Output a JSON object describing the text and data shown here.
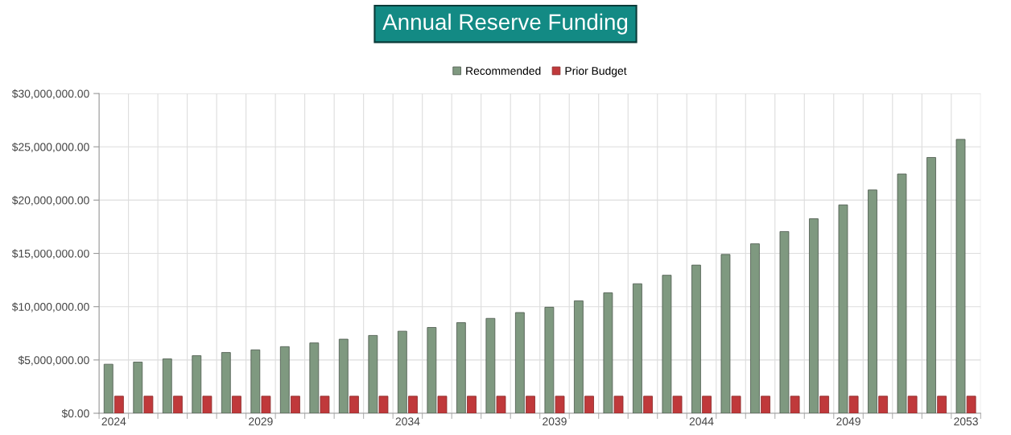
{
  "chart_data": {
    "type": "bar",
    "title": "Annual Reserve Funding",
    "categories": [
      "2024",
      null,
      null,
      null,
      null,
      "2029",
      null,
      null,
      null,
      null,
      "2034",
      null,
      null,
      null,
      null,
      "2039",
      null,
      null,
      null,
      null,
      "2044",
      null,
      null,
      null,
      null,
      "2049",
      null,
      null,
      null,
      "2053"
    ],
    "series": [
      {
        "name": "Recommended",
        "color": "#7f9980",
        "values": [
          4600000,
          4800000,
          5100000,
          5400000,
          5700000,
          5950000,
          6250000,
          6600000,
          6950000,
          7300000,
          7700000,
          8050000,
          8500000,
          8900000,
          9450000,
          9950000,
          10550000,
          11300000,
          12150000,
          12950000,
          13900000,
          14900000,
          15900000,
          17050000,
          18250000,
          19550000,
          20950000,
          22450000,
          24000000,
          25700000
        ]
      },
      {
        "name": "Prior Budget",
        "color": "#c0393b",
        "values": [
          1600000,
          1600000,
          1600000,
          1600000,
          1600000,
          1600000,
          1600000,
          1600000,
          1600000,
          1600000,
          1600000,
          1600000,
          1600000,
          1600000,
          1600000,
          1600000,
          1600000,
          1600000,
          1600000,
          1600000,
          1600000,
          1600000,
          1600000,
          1600000,
          1600000,
          1600000,
          1600000,
          1600000,
          1600000,
          1600000
        ]
      }
    ],
    "ylim": [
      0,
      30000000
    ],
    "yticks": [
      {
        "value": 0,
        "label": "$0.00"
      },
      {
        "value": 5000000,
        "label": "$5,000,000.00"
      },
      {
        "value": 10000000,
        "label": "$10,000,000.00"
      },
      {
        "value": 15000000,
        "label": "$15,000,000.00"
      },
      {
        "value": 20000000,
        "label": "$20,000,000.00"
      },
      {
        "value": 25000000,
        "label": "$25,000,000.00"
      },
      {
        "value": 30000000,
        "label": "$30,000,000.00"
      }
    ],
    "grid": true,
    "legend": "top"
  }
}
